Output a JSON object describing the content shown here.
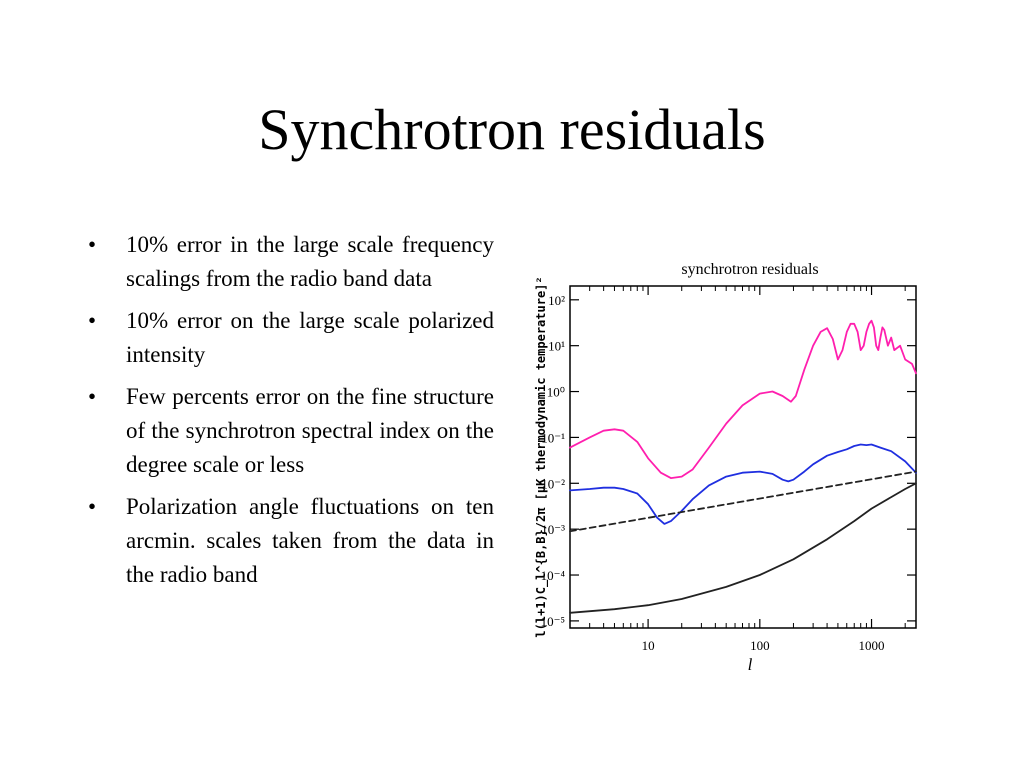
{
  "slide": {
    "title": "Synchrotron residuals",
    "bullets": [
      "10% error in the large scale frequency scalings from the radio band data",
      "10% error on the large scale polarized intensity",
      "Few percents error on the fine structure of the synchrotron spectral index on the degree scale or less",
      "Polarization angle fluctuations on ten arcmin. scales taken from the data in the radio band"
    ],
    "bullet_symbol": "•"
  },
  "chart_data": {
    "type": "line",
    "title": "synchrotron residuals",
    "xlabel": "l",
    "ylabel": "l(l+1)C_l^{B,B}/2π [μK thermodynamic temperature]²",
    "xscale": "log",
    "yscale": "log",
    "xlim": [
      2,
      2500
    ],
    "ylim": [
      7e-06,
      200
    ],
    "x_ticks": [
      "10",
      "100",
      "1000"
    ],
    "y_ticks": [
      "10²",
      "10¹",
      "10⁰",
      "10⁻¹",
      "10⁻²",
      "10⁻³",
      "10⁻⁴",
      "10⁻⁵"
    ],
    "grid": false,
    "series": [
      {
        "color": "#ff1fae",
        "style": "solid",
        "x": [
          2,
          3,
          4,
          5,
          6,
          8,
          10,
          13,
          16,
          20,
          25,
          35,
          50,
          70,
          100,
          130,
          160,
          190,
          210,
          250,
          300,
          350,
          400,
          450,
          500,
          550,
          600,
          650,
          700,
          750,
          800,
          850,
          900,
          950,
          1000,
          1050,
          1100,
          1150,
          1200,
          1250,
          1300,
          1400,
          1500,
          1600,
          1800,
          2000,
          2300,
          2500
        ],
        "y": [
          0.06,
          0.1,
          0.14,
          0.15,
          0.14,
          0.08,
          0.035,
          0.017,
          0.013,
          0.014,
          0.02,
          0.06,
          0.2,
          0.5,
          0.9,
          1.0,
          0.8,
          0.6,
          0.8,
          3,
          10,
          20,
          24,
          14,
          5,
          8,
          20,
          30,
          30,
          20,
          8,
          10,
          20,
          30,
          35,
          25,
          10,
          8,
          15,
          25,
          22,
          10,
          15,
          8,
          10,
          5,
          4,
          2.5
        ]
      },
      {
        "color": "#1f2fe0",
        "style": "solid",
        "x": [
          2,
          3,
          4,
          5,
          6,
          8,
          10,
          12,
          14,
          16,
          20,
          25,
          35,
          50,
          70,
          100,
          130,
          160,
          180,
          200,
          250,
          300,
          400,
          500,
          600,
          700,
          800,
          900,
          1000,
          1200,
          1500,
          2000,
          2500
        ],
        "y": [
          0.007,
          0.0075,
          0.008,
          0.008,
          0.0075,
          0.006,
          0.0035,
          0.0018,
          0.0013,
          0.0015,
          0.0025,
          0.0045,
          0.009,
          0.014,
          0.017,
          0.018,
          0.016,
          0.012,
          0.011,
          0.012,
          0.018,
          0.026,
          0.04,
          0.048,
          0.055,
          0.065,
          0.07,
          0.068,
          0.07,
          0.06,
          0.05,
          0.03,
          0.017
        ]
      },
      {
        "color": "#222222",
        "style": "dashed",
        "x": [
          2,
          2500
        ],
        "y": [
          0.0009,
          0.018
        ]
      },
      {
        "color": "#222222",
        "style": "solid",
        "x": [
          2,
          5,
          10,
          20,
          50,
          100,
          200,
          400,
          700,
          1000,
          1500,
          2000,
          2500
        ],
        "y": [
          1.5e-05,
          1.8e-05,
          2.2e-05,
          3e-05,
          5.5e-05,
          0.0001,
          0.00022,
          0.0006,
          0.0015,
          0.0028,
          0.005,
          0.0075,
          0.01
        ]
      }
    ]
  }
}
